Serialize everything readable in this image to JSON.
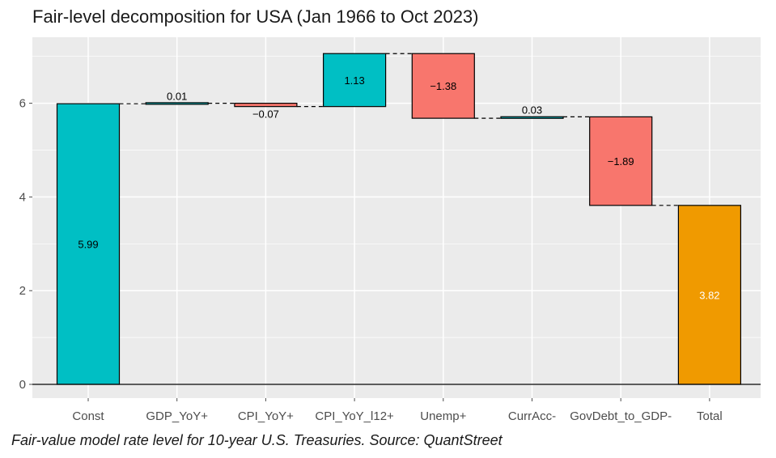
{
  "chart_data": {
    "type": "bar",
    "subtype": "waterfall",
    "title": "Fair-level decomposition for USA (Jan 1966 to Oct 2023)",
    "categories": [
      "Const",
      "GDP_YoY+",
      "CPI_YoY+",
      "CPI_YoY_l12+",
      "Unemp+",
      "CurrAcc-",
      "GovDebt_to_GDP-",
      "Total"
    ],
    "values": [
      5.99,
      0.01,
      -0.07,
      1.13,
      -1.38,
      0.03,
      -1.89,
      3.82
    ],
    "value_labels": [
      "5.99",
      "0.01",
      "−0.07",
      "1.13",
      "−1.38",
      "0.03",
      "−1.89",
      "3.82"
    ],
    "xlabel": "",
    "ylabel": "",
    "ylim": [
      0,
      7.35
    ],
    "yticks": [
      0,
      2,
      4,
      6
    ],
    "grid": true,
    "legend": "none",
    "colors": {
      "increase": "#00BFC4",
      "decrease": "#F8766D",
      "total": "#F09A00",
      "panel": "#EBEBEB",
      "grid": "#FFFFFF",
      "connector": "#000000"
    }
  },
  "caption": "Fair-value model rate level for 10-year U.S. Treasuries. Source: QuantStreet"
}
